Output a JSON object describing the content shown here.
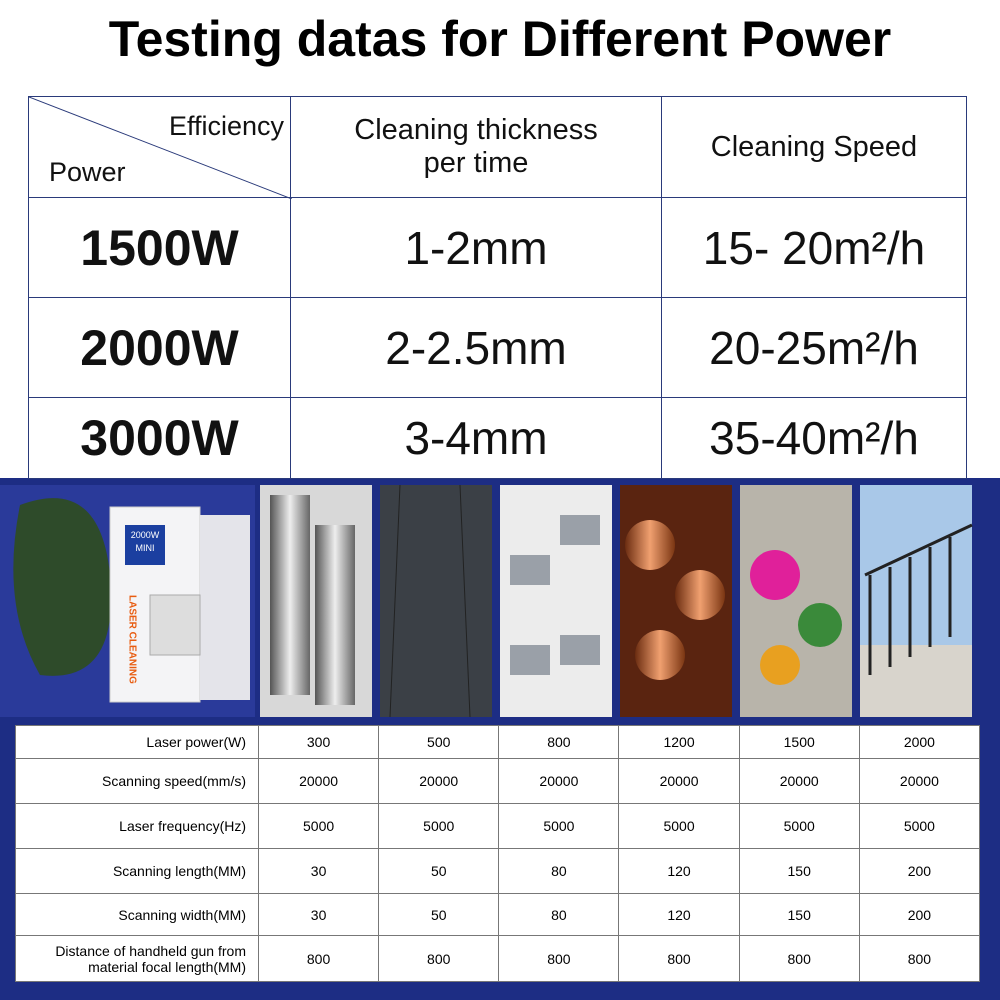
{
  "header": {
    "title": "Testing datas for Different Power"
  },
  "power_table": {
    "corner_top": "Efficiency",
    "corner_bottom": "Power",
    "columns": [
      "Cleaning thickness per time",
      "Cleaning Speed"
    ],
    "rows": [
      [
        "1500W",
        "1-2mm",
        "15- 20m²/h"
      ],
      [
        "2000W",
        "2-2.5mm",
        "20-25m²/h"
      ],
      [
        "3000W",
        "3-4mm",
        "35-40m²/h"
      ]
    ]
  },
  "machine": {
    "badge_power": "2000W",
    "badge_model": "MINI",
    "side_text": "LASER CLEANING"
  },
  "spec_table": {
    "rows": [
      [
        "Laser power(W)",
        300,
        500,
        800,
        1200,
        1500,
        2000
      ],
      [
        "Scanning speed(mm/s)",
        20000,
        20000,
        20000,
        20000,
        20000,
        20000
      ],
      [
        "Laser frequency(Hz)",
        5000,
        5000,
        5000,
        5000,
        5000,
        5000
      ],
      [
        "Scanning length(MM)",
        30,
        50,
        80,
        120,
        150,
        200
      ],
      [
        "Scanning width(MM)",
        30,
        50,
        80,
        120,
        150,
        200
      ],
      [
        "Distance of handheld gun from material focal length(MM)",
        800,
        800,
        800,
        800,
        800,
        800
      ]
    ]
  }
}
